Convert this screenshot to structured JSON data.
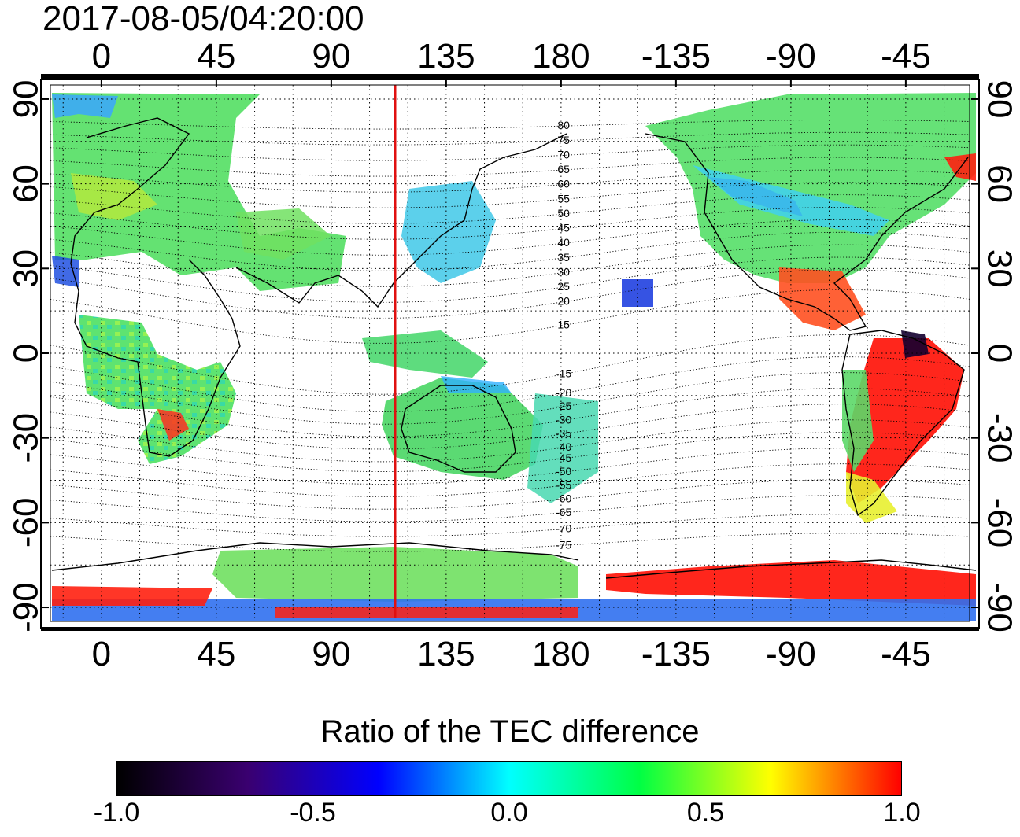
{
  "map": {
    "timestamp": "2017-08-05/04:20:00",
    "lon_ticks": [
      {
        "lon": 0,
        "label": "0"
      },
      {
        "lon": 45,
        "label": "45"
      },
      {
        "lon": 90,
        "label": "90"
      },
      {
        "lon": 135,
        "label": "135"
      },
      {
        "lon": 180,
        "label": "180"
      },
      {
        "lon": 225,
        "label": "-135"
      },
      {
        "lon": 270,
        "label": "-90"
      },
      {
        "lon": 315,
        "label": "-45"
      }
    ],
    "lat_ticks": [
      {
        "lat": 90,
        "label": "90"
      },
      {
        "lat": 60,
        "label": "60"
      },
      {
        "lat": 30,
        "label": "30"
      },
      {
        "lat": 0,
        "label": "0"
      },
      {
        "lat": -30,
        "label": "-30"
      },
      {
        "lat": -60,
        "label": "-60"
      },
      {
        "lat": -90,
        "label": "-90"
      }
    ],
    "lon_range": [
      -20,
      340
    ],
    "lat_range": [
      -95,
      95
    ],
    "grid": true,
    "subsolar_meridian_lon": 115,
    "contour_labels": [
      {
        "label": "80",
        "lat": 81
      },
      {
        "label": "75",
        "lat": 76
      },
      {
        "label": "70",
        "lat": 71
      },
      {
        "label": "65",
        "lat": 66
      },
      {
        "label": "60",
        "lat": 61
      },
      {
        "label": "55",
        "lat": 56
      },
      {
        "label": "50",
        "lat": 51
      },
      {
        "label": "45",
        "lat": 46
      },
      {
        "label": "40",
        "lat": 41
      },
      {
        "label": "35",
        "lat": 36
      },
      {
        "label": "30",
        "lat": 31
      },
      {
        "label": "25",
        "lat": 26
      },
      {
        "label": "20",
        "lat": 21
      },
      {
        "label": "15",
        "lat": 13
      },
      {
        "label": "-15",
        "lat": -4
      },
      {
        "label": "-20",
        "lat": -11
      },
      {
        "label": "-25",
        "lat": -16
      },
      {
        "label": "-30",
        "lat": -21
      },
      {
        "label": "-35",
        "lat": -26
      },
      {
        "label": "-40",
        "lat": -31
      },
      {
        "label": "-45",
        "lat": -35
      },
      {
        "label": "-50",
        "lat": -40
      },
      {
        "label": "-55",
        "lat": -45
      },
      {
        "label": "-60",
        "lat": -50
      },
      {
        "label": "-65",
        "lat": -55
      },
      {
        "label": "-70",
        "lat": -61
      },
      {
        "label": "-75",
        "lat": -67
      }
    ]
  },
  "colorbar": {
    "title": "Ratio of the TEC difference",
    "range": [
      -1.0,
      1.0
    ],
    "ticks": [
      "-1.0",
      "-0.5",
      "0.0",
      "0.5",
      "1.0"
    ],
    "colors": [
      "#000000",
      "#3a0070",
      "#0000ff",
      "#00ffff",
      "#00ff44",
      "#ffff00",
      "#ff0000"
    ]
  }
}
